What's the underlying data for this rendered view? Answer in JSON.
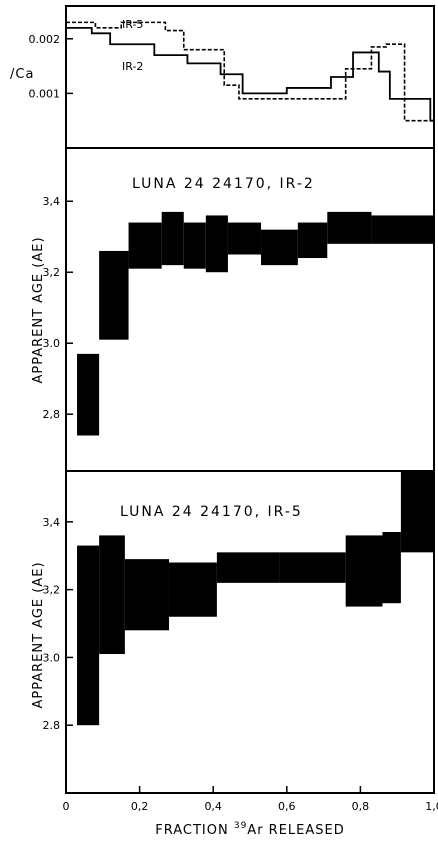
{
  "chart_data": [
    {
      "type": "line",
      "panel": "top",
      "ylabel": "/Ca",
      "xlim": [
        0,
        1.0
      ],
      "ylim": [
        0.0,
        0.0026
      ],
      "yticks": [
        0.001,
        0.002
      ],
      "ytick_labels": [
        "0.001",
        "0.002"
      ],
      "series": [
        {
          "name": "IR-5",
          "style": "dashed",
          "steps": [
            [
              0.0,
              0.0023
            ],
            [
              0.08,
              0.0022
            ],
            [
              0.15,
              0.0023
            ],
            [
              0.27,
              0.00215
            ],
            [
              0.32,
              0.0018
            ],
            [
              0.4,
              0.0018
            ],
            [
              0.43,
              0.00115
            ],
            [
              0.47,
              0.0009
            ],
            [
              0.58,
              0.0009
            ],
            [
              0.76,
              0.00145
            ],
            [
              0.83,
              0.00185
            ],
            [
              0.87,
              0.0019
            ],
            [
              0.92,
              0.0005
            ],
            [
              1.0,
              0.0005
            ]
          ]
        },
        {
          "name": "IR-2",
          "style": "solid",
          "steps": [
            [
              0.0,
              0.0022
            ],
            [
              0.07,
              0.0021
            ],
            [
              0.12,
              0.0019
            ],
            [
              0.24,
              0.0017
            ],
            [
              0.33,
              0.00155
            ],
            [
              0.42,
              0.00135
            ],
            [
              0.48,
              0.001
            ],
            [
              0.6,
              0.0011
            ],
            [
              0.72,
              0.0013
            ],
            [
              0.78,
              0.00175
            ],
            [
              0.85,
              0.0014
            ],
            [
              0.88,
              0.0009
            ],
            [
              0.99,
              0.0005
            ],
            [
              1.0,
              0.0005
            ]
          ]
        }
      ]
    },
    {
      "type": "bar",
      "panel": "middle",
      "title": "LUNA  24  24170, IR-2",
      "ylabel": "APPARENT AGE (AE)",
      "xlim": [
        0,
        1.0
      ],
      "ylim": [
        2.64,
        3.55
      ],
      "yticks": [
        2.8,
        3.0,
        3.2,
        3.4
      ],
      "ytick_labels": [
        "2,8",
        "3.0",
        "3,2",
        "3,4"
      ],
      "boxes": [
        {
          "x0": 0.03,
          "x1": 0.09,
          "y0": 2.74,
          "y1": 2.97
        },
        {
          "x0": 0.09,
          "x1": 0.17,
          "y0": 3.01,
          "y1": 3.26
        },
        {
          "x0": 0.17,
          "x1": 0.26,
          "y0": 3.21,
          "y1": 3.34
        },
        {
          "x0": 0.26,
          "x1": 0.32,
          "y0": 3.22,
          "y1": 3.37
        },
        {
          "x0": 0.32,
          "x1": 0.38,
          "y0": 3.21,
          "y1": 3.34
        },
        {
          "x0": 0.38,
          "x1": 0.44,
          "y0": 3.2,
          "y1": 3.36
        },
        {
          "x0": 0.44,
          "x1": 0.53,
          "y0": 3.25,
          "y1": 3.34
        },
        {
          "x0": 0.53,
          "x1": 0.63,
          "y0": 3.22,
          "y1": 3.32
        },
        {
          "x0": 0.63,
          "x1": 0.71,
          "y0": 3.24,
          "y1": 3.34
        },
        {
          "x0": 0.71,
          "x1": 0.83,
          "y0": 3.28,
          "y1": 3.37
        },
        {
          "x0": 0.83,
          "x1": 1.0,
          "y0": 3.28,
          "y1": 3.36
        }
      ]
    },
    {
      "type": "bar",
      "panel": "bottom",
      "title": "LUNA  24  24170, IR-5",
      "ylabel": "APPARENT AGE (AE)",
      "xlabel": "FRACTION 39Ar RELEASED",
      "xlim": [
        0,
        1.0
      ],
      "ylim": [
        2.6,
        3.55
      ],
      "yticks": [
        2.8,
        3.0,
        3.2,
        3.4
      ],
      "ytick_labels": [
        "2.8",
        "3.0",
        "3,2",
        "3,4"
      ],
      "xticks": [
        0,
        0.2,
        0.4,
        0.6,
        0.8,
        1.0
      ],
      "xtick_labels": [
        "0",
        "0,2",
        "0,4",
        "0,6",
        "0,8",
        "1,0"
      ],
      "boxes": [
        {
          "x0": 0.03,
          "x1": 0.09,
          "y0": 2.8,
          "y1": 3.33
        },
        {
          "x0": 0.09,
          "x1": 0.16,
          "y0": 3.01,
          "y1": 3.36
        },
        {
          "x0": 0.16,
          "x1": 0.28,
          "y0": 3.08,
          "y1": 3.29
        },
        {
          "x0": 0.28,
          "x1": 0.41,
          "y0": 3.12,
          "y1": 3.28
        },
        {
          "x0": 0.41,
          "x1": 0.58,
          "y0": 3.22,
          "y1": 3.31
        },
        {
          "x0": 0.58,
          "x1": 0.76,
          "y0": 3.22,
          "y1": 3.31
        },
        {
          "x0": 0.76,
          "x1": 0.86,
          "y0": 3.15,
          "y1": 3.36
        },
        {
          "x0": 0.86,
          "x1": 0.91,
          "y0": 3.16,
          "y1": 3.37
        },
        {
          "x0": 0.91,
          "x1": 1.0,
          "y0": 3.31,
          "y1": 3.55
        }
      ]
    }
  ],
  "labels": {
    "top_ylabel": "/Ca",
    "series_ir5": "IR-5",
    "series_ir2": "IR-2",
    "middle_title": "LUNA  24  24170, IR-2",
    "bottom_title": "LUNA  24  24170, IR-5",
    "ylabel": "APPARENT AGE (AE)",
    "xlabel_pre": "FRACTION ",
    "xlabel_sup": "39",
    "xlabel_post": "Ar RELEASED"
  }
}
